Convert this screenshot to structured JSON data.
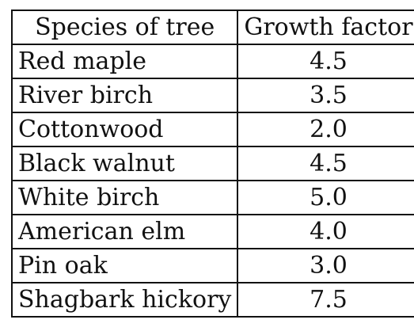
{
  "table": {
    "headers": [
      "Species of tree",
      "Growth factor"
    ],
    "rows": [
      {
        "species": "Red maple",
        "factor": "4.5"
      },
      {
        "species": "River birch",
        "factor": "3.5"
      },
      {
        "species": "Cottonwood",
        "factor": "2.0"
      },
      {
        "species": "Black walnut",
        "factor": "4.5"
      },
      {
        "species": "White birch",
        "factor": "5.0"
      },
      {
        "species": "American elm",
        "factor": "4.0"
      },
      {
        "species": "Pin oak",
        "factor": "3.0"
      },
      {
        "species": "Shagbark hickory",
        "factor": "7.5"
      }
    ]
  }
}
